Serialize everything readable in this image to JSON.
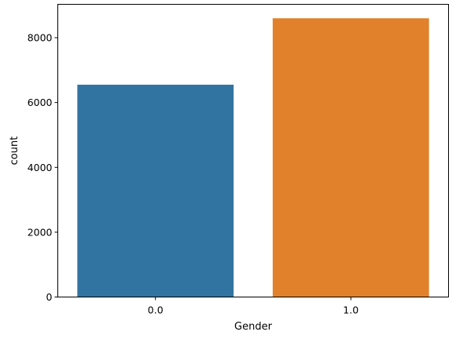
{
  "chart_data": {
    "type": "bar",
    "title": "",
    "xlabel": "Gender",
    "ylabel": "count",
    "categories": [
      "0.0",
      "1.0"
    ],
    "values": [
      6550,
      8600
    ],
    "ylim": [
      0,
      9030
    ],
    "yticks": [
      0,
      2000,
      4000,
      6000,
      8000
    ],
    "colors": [
      "#3274a1",
      "#e1812c"
    ],
    "grid": false,
    "legend": "none"
  }
}
